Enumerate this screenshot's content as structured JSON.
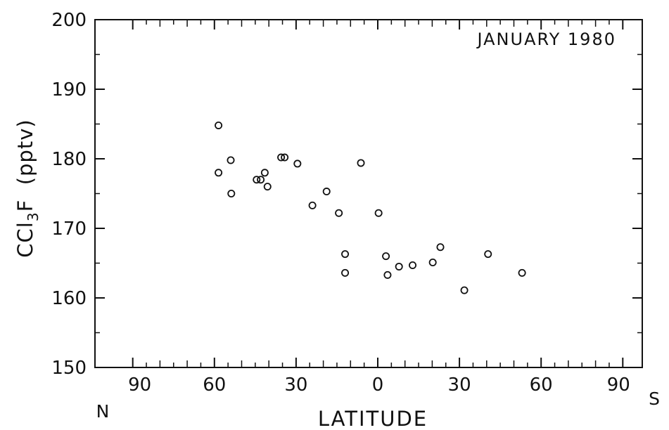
{
  "chart_data": {
    "type": "scatter",
    "title": "JANUARY 1980",
    "xlabel": "LATITUDE",
    "ylabel": "CCl3F  (pptv)",
    "ylabel_parts": {
      "main": "CCl",
      "sub": "3",
      "tail": "F  (pptv)"
    },
    "x_end_labels": {
      "left": "N",
      "right": "S"
    },
    "x_ticks": [
      {
        "pos": -90,
        "label": "90"
      },
      {
        "pos": -60,
        "label": "60"
      },
      {
        "pos": -30,
        "label": "30"
      },
      {
        "pos": 0,
        "label": "0"
      },
      {
        "pos": 30,
        "label": "30"
      },
      {
        "pos": 60,
        "label": "60"
      },
      {
        "pos": 90,
        "label": "90"
      }
    ],
    "y_ticks": [
      150,
      160,
      170,
      180,
      190,
      200
    ],
    "xlim": [
      -90,
      90
    ],
    "ylim": [
      150,
      200
    ],
    "x_axis_note": "Latitude, 90N (left) to 90S (right); plotted positions: N negative, S positive",
    "points": [
      {
        "x": -58.5,
        "y": 184.8
      },
      {
        "x": -58.5,
        "y": 178.0
      },
      {
        "x": -54.0,
        "y": 179.8
      },
      {
        "x": -53.8,
        "y": 175.0
      },
      {
        "x": -44.5,
        "y": 177.0
      },
      {
        "x": -43.0,
        "y": 177.0
      },
      {
        "x": -41.5,
        "y": 178.0
      },
      {
        "x": -40.5,
        "y": 176.0
      },
      {
        "x": -35.5,
        "y": 180.2
      },
      {
        "x": -34.2,
        "y": 180.2
      },
      {
        "x": -29.5,
        "y": 179.3
      },
      {
        "x": -24.0,
        "y": 173.3
      },
      {
        "x": -18.8,
        "y": 175.3
      },
      {
        "x": -14.3,
        "y": 172.2
      },
      {
        "x": -12.0,
        "y": 166.3
      },
      {
        "x": -12.0,
        "y": 163.6
      },
      {
        "x": -6.2,
        "y": 179.4
      },
      {
        "x": 0.3,
        "y": 172.2
      },
      {
        "x": 3.0,
        "y": 166.0
      },
      {
        "x": 3.6,
        "y": 163.3
      },
      {
        "x": 7.8,
        "y": 164.5
      },
      {
        "x": 12.8,
        "y": 164.7
      },
      {
        "x": 20.2,
        "y": 165.1
      },
      {
        "x": 23.0,
        "y": 167.3
      },
      {
        "x": 31.8,
        "y": 161.1
      },
      {
        "x": 40.5,
        "y": 166.3
      },
      {
        "x": 53.0,
        "y": 163.6
      }
    ]
  }
}
